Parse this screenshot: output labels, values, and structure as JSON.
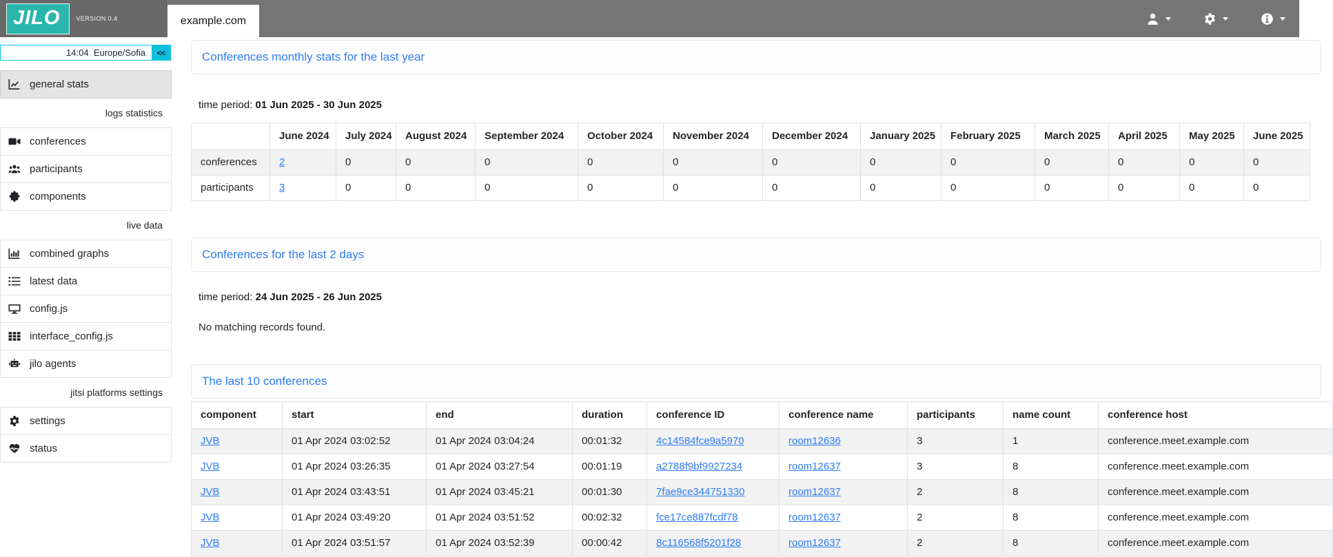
{
  "topbar": {
    "logo": "JILO",
    "version": "VERSION 0.4",
    "tab": "example.com",
    "menus": [
      {
        "name": "user-menu",
        "icon": "user-icon"
      },
      {
        "name": "settings-menu",
        "icon": "gear-icon"
      },
      {
        "name": "info-menu",
        "icon": "info-icon"
      }
    ]
  },
  "sidebar": {
    "time": "14:04",
    "timezone": "Europe/Sofia",
    "collapse_label": "<<",
    "items": [
      {
        "type": "item",
        "icon": "chart-line-icon",
        "label": "general stats",
        "active": true
      },
      {
        "type": "section",
        "label": "logs statistics"
      },
      {
        "type": "item",
        "icon": "video-icon",
        "label": "conferences"
      },
      {
        "type": "item",
        "icon": "users-icon",
        "label": "participants"
      },
      {
        "type": "item",
        "icon": "puzzle-icon",
        "label": "components"
      },
      {
        "type": "section",
        "label": "live data"
      },
      {
        "type": "item",
        "icon": "chart-bars-icon",
        "label": "combined graphs"
      },
      {
        "type": "item",
        "icon": "list-icon",
        "label": "latest data"
      },
      {
        "type": "item",
        "icon": "desktop-icon",
        "label": "config.js"
      },
      {
        "type": "item",
        "icon": "grid-icon",
        "label": "interface_config.js"
      },
      {
        "type": "item",
        "icon": "robot-icon",
        "label": "jilo agents"
      },
      {
        "type": "section",
        "label": "jitsi platforms settings"
      },
      {
        "type": "item",
        "icon": "gear-icon",
        "label": "settings"
      },
      {
        "type": "item",
        "icon": "heart-pulse-icon",
        "label": "status"
      }
    ]
  },
  "sections": {
    "monthly": {
      "title": "Conferences monthly stats for the last year",
      "time_period_label": "time period:",
      "time_period": "01 Jun 2025 - 30 Jun 2025",
      "table": {
        "columns": [
          "",
          "June 2024",
          "July 2024",
          "August 2024",
          "September 2024",
          "October 2024",
          "November 2024",
          "December 2024",
          "January 2025",
          "February 2025",
          "March 2025",
          "April 2025",
          "May 2025",
          "June 2025"
        ],
        "rows": [
          {
            "label": "conferences",
            "values": [
              "2",
              "0",
              "0",
              "0",
              "0",
              "0",
              "0",
              "0",
              "0",
              "0",
              "0",
              "0",
              "0"
            ],
            "link_indices": [
              0
            ]
          },
          {
            "label": "participants",
            "values": [
              "3",
              "0",
              "0",
              "0",
              "0",
              "0",
              "0",
              "0",
              "0",
              "0",
              "0",
              "0",
              "0"
            ],
            "link_indices": [
              0
            ]
          }
        ]
      }
    },
    "last2days": {
      "title": "Conferences for the last 2 days",
      "time_period_label": "time period:",
      "time_period": "24 Jun 2025 - 26 Jun 2025",
      "empty_message": "No matching records found."
    },
    "last10": {
      "title": "The last 10 conferences",
      "table": {
        "columns": [
          "component",
          "start",
          "end",
          "duration",
          "conference ID",
          "conference name",
          "participants",
          "name count",
          "conference host"
        ],
        "rows": [
          {
            "component": "JVB",
            "start": "01 Apr 2024 03:02:52",
            "end": "01 Apr 2024 03:04:24",
            "duration": "00:01:32",
            "conference_id": "4c14584fce9a5970",
            "conference_name": "room12636",
            "participants": "3",
            "name_count": "1",
            "conference_host": "conference.meet.example.com"
          },
          {
            "component": "JVB",
            "start": "01 Apr 2024 03:26:35",
            "end": "01 Apr 2024 03:27:54",
            "duration": "00:01:19",
            "conference_id": "a2788f9bf9927234",
            "conference_name": "room12637",
            "participants": "3",
            "name_count": "8",
            "conference_host": "conference.meet.example.com"
          },
          {
            "component": "JVB",
            "start": "01 Apr 2024 03:43:51",
            "end": "01 Apr 2024 03:45:21",
            "duration": "00:01:30",
            "conference_id": "7fae9ce344751330",
            "conference_name": "room12637",
            "participants": "2",
            "name_count": "8",
            "conference_host": "conference.meet.example.com"
          },
          {
            "component": "JVB",
            "start": "01 Apr 2024 03:49:20",
            "end": "01 Apr 2024 03:51:52",
            "duration": "00:02:32",
            "conference_id": "fce17ce887fcdf78",
            "conference_name": "room12637",
            "participants": "2",
            "name_count": "8",
            "conference_host": "conference.meet.example.com"
          },
          {
            "component": "JVB",
            "start": "01 Apr 2024 03:51:57",
            "end": "01 Apr 2024 03:52:39",
            "duration": "00:00:42",
            "conference_id": "8c116568f5201f28",
            "conference_name": "room12637",
            "participants": "2",
            "name_count": "8",
            "conference_host": "conference.meet.example.com"
          }
        ]
      }
    }
  },
  "colors": {
    "accent_teal": "#2ab6ac",
    "cyan": "#0ec0de",
    "link_blue": "#2e7cf6",
    "topbar_gray": "#757575"
  }
}
